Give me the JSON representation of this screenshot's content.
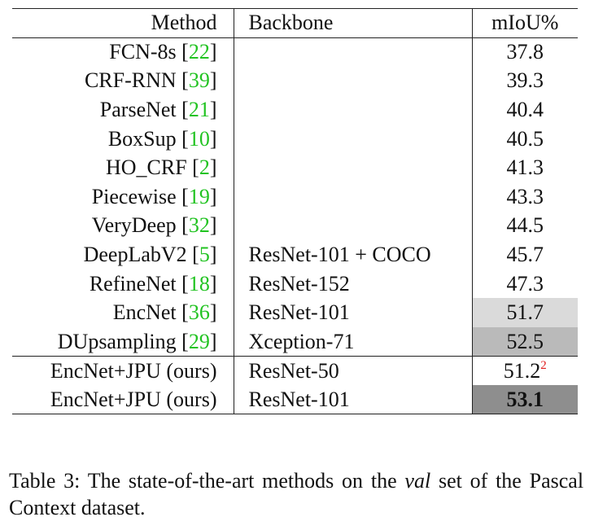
{
  "table": {
    "headers": {
      "method": "Method",
      "backbone": "Backbone",
      "miou": "mIoU%"
    },
    "rows_group1": [
      {
        "method": "FCN-8s",
        "cite": "22",
        "backbone": "",
        "miou": "37.8",
        "shade": ""
      },
      {
        "method": "CRF-RNN",
        "cite": "39",
        "backbone": "",
        "miou": "39.3",
        "shade": ""
      },
      {
        "method": "ParseNet",
        "cite": "21",
        "backbone": "",
        "miou": "40.4",
        "shade": ""
      },
      {
        "method": "BoxSup",
        "cite": "10",
        "backbone": "",
        "miou": "40.5",
        "shade": ""
      },
      {
        "method": "HO_CRF",
        "cite": "2",
        "backbone": "",
        "miou": "41.3",
        "shade": ""
      },
      {
        "method": "Piecewise",
        "cite": "19",
        "backbone": "",
        "miou": "43.3",
        "shade": ""
      },
      {
        "method": "VeryDeep",
        "cite": "32",
        "backbone": "",
        "miou": "44.5",
        "shade": ""
      },
      {
        "method": "DeepLabV2",
        "cite": "5",
        "backbone": "ResNet-101 + COCO",
        "miou": "45.7",
        "shade": ""
      },
      {
        "method": "RefineNet",
        "cite": "18",
        "backbone": "ResNet-152",
        "miou": "47.3",
        "shade": ""
      },
      {
        "method": "EncNet",
        "cite": "36",
        "backbone": "ResNet-101",
        "miou": "51.7",
        "shade": "light"
      },
      {
        "method": "DUpsampling",
        "cite": "29",
        "backbone": "Xception-71",
        "miou": "52.5",
        "shade": "mid"
      }
    ],
    "rows_group2": [
      {
        "method": "EncNet+JPU (ours)",
        "backbone": "ResNet-50",
        "miou": "51.2",
        "footnote": "2",
        "shade": ""
      },
      {
        "method": "EncNet+JPU (ours)",
        "backbone": "ResNet-101",
        "miou": "53.1",
        "footnote": "",
        "shade": "dark"
      }
    ]
  },
  "caption": {
    "label": "Table 3:",
    "text_before": "The state-of-the-art methods on the",
    "italic": "val",
    "text_after": "set of the Pascal Context dataset."
  },
  "colors": {
    "citation": "#22c322",
    "footnote": "#e01b1b",
    "shade_light": "#dadada",
    "shade_mid": "#bababa",
    "shade_dark": "#8e8e8e"
  }
}
